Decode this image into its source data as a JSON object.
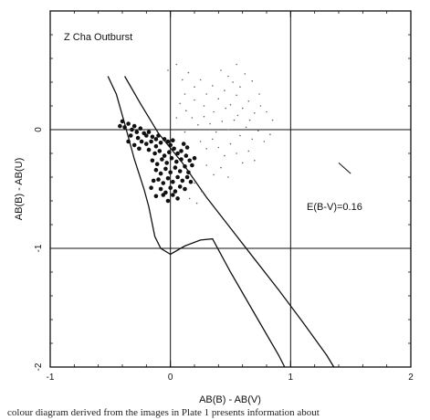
{
  "chart_data": {
    "type": "scatter",
    "title": "Z Cha Outburst",
    "xlabel": "AB(B) - AB(V)",
    "ylabel": "AB(B) - AB(U)",
    "xlim": [
      -1,
      2
    ],
    "ylim": [
      -2,
      1
    ],
    "y_axis_inverted": true,
    "xticks": [
      -1,
      0,
      1,
      2
    ],
    "xtick_labels": [
      "-1",
      "0",
      "1",
      "2"
    ],
    "yticks": [
      0,
      -1,
      -2
    ],
    "ytick_labels": [
      "0",
      "-1",
      "-2"
    ],
    "reference_lines": {
      "x": [
        0,
        1
      ],
      "y": [
        0,
        -1
      ]
    },
    "annotation": "E(B-V)=0.16",
    "reddening_vector": {
      "from": [
        1.4,
        -0.28
      ],
      "to": [
        1.5,
        -0.37
      ]
    },
    "curves": [
      {
        "points": [
          [
            -0.52,
            0.45
          ],
          [
            -0.45,
            0.3
          ],
          [
            -0.38,
            0.05
          ],
          [
            -0.3,
            -0.25
          ],
          [
            -0.22,
            -0.5
          ],
          [
            -0.18,
            -0.65
          ],
          [
            -0.13,
            -0.9
          ],
          [
            -0.08,
            -1.0
          ],
          [
            0,
            -1.05
          ],
          [
            0.12,
            -0.98
          ],
          [
            0.25,
            -0.93
          ],
          [
            0.35,
            -0.92
          ],
          [
            0.5,
            -1.2
          ],
          [
            0.7,
            -1.55
          ],
          [
            0.9,
            -1.9
          ],
          [
            0.95,
            -2.0
          ]
        ]
      },
      {
        "points": [
          [
            -0.38,
            0.45
          ],
          [
            -0.25,
            0.22
          ],
          [
            -0.1,
            -0.03
          ],
          [
            0.1,
            -0.28
          ],
          [
            0.3,
            -0.57
          ],
          [
            0.5,
            -0.83
          ],
          [
            0.7,
            -1.09
          ],
          [
            0.9,
            -1.35
          ],
          [
            1.1,
            -1.62
          ],
          [
            1.3,
            -1.9
          ],
          [
            1.36,
            -2.0
          ]
        ]
      }
    ],
    "series": [
      {
        "marker": "large-dot",
        "points": [
          [
            -0.4,
            0.07
          ],
          [
            -0.38,
            0.02
          ],
          [
            -0.35,
            0.05
          ],
          [
            -0.32,
            0.0
          ],
          [
            -0.3,
            0.03
          ],
          [
            -0.28,
            -0.02
          ],
          [
            -0.25,
            0.01
          ],
          [
            -0.22,
            -0.03
          ],
          [
            -0.2,
            -0.05
          ],
          [
            -0.18,
            -0.02
          ],
          [
            -0.15,
            -0.06
          ],
          [
            -0.12,
            -0.08
          ],
          [
            -0.1,
            -0.05
          ],
          [
            -0.33,
            -0.05
          ],
          [
            -0.27,
            -0.07
          ],
          [
            -0.24,
            -0.1
          ],
          [
            -0.2,
            -0.12
          ],
          [
            -0.16,
            -0.1
          ],
          [
            -0.12,
            -0.14
          ],
          [
            -0.08,
            -0.11
          ],
          [
            -0.05,
            -0.08
          ],
          [
            -0.02,
            -0.1
          ],
          [
            0.0,
            -0.13
          ],
          [
            0.02,
            -0.09
          ],
          [
            -0.18,
            -0.17
          ],
          [
            -0.13,
            -0.2
          ],
          [
            -0.09,
            -0.18
          ],
          [
            -0.05,
            -0.22
          ],
          [
            -0.01,
            -0.19
          ],
          [
            0.03,
            -0.16
          ],
          [
            0.06,
            -0.2
          ],
          [
            0.09,
            -0.18
          ],
          [
            -0.15,
            -0.26
          ],
          [
            -0.11,
            -0.29
          ],
          [
            -0.07,
            -0.25
          ],
          [
            -0.03,
            -0.28
          ],
          [
            0.01,
            -0.24
          ],
          [
            0.05,
            -0.27
          ],
          [
            0.09,
            -0.25
          ],
          [
            0.13,
            -0.22
          ],
          [
            0.16,
            -0.26
          ],
          [
            -0.12,
            -0.34
          ],
          [
            -0.08,
            -0.37
          ],
          [
            -0.04,
            -0.33
          ],
          [
            0.0,
            -0.36
          ],
          [
            0.04,
            -0.32
          ],
          [
            0.08,
            -0.35
          ],
          [
            0.12,
            -0.31
          ],
          [
            0.15,
            -0.36
          ],
          [
            -0.1,
            -0.42
          ],
          [
            -0.06,
            -0.45
          ],
          [
            -0.02,
            -0.41
          ],
          [
            0.02,
            -0.44
          ],
          [
            0.06,
            -0.4
          ],
          [
            0.1,
            -0.43
          ],
          [
            0.14,
            -0.4
          ],
          [
            -0.08,
            -0.5
          ],
          [
            -0.04,
            -0.53
          ],
          [
            0.0,
            -0.49
          ],
          [
            0.04,
            -0.52
          ],
          [
            0.08,
            -0.48
          ],
          [
            -0.12,
            -0.56
          ],
          [
            -0.06,
            -0.55
          ],
          [
            0.02,
            -0.55
          ],
          [
            0.18,
            -0.3
          ],
          [
            0.2,
            -0.24
          ],
          [
            -0.35,
            -0.1
          ],
          [
            -0.3,
            -0.13
          ],
          [
            -0.26,
            -0.16
          ],
          [
            -0.42,
            0.03
          ],
          [
            0.11,
            -0.12
          ],
          [
            0.14,
            -0.15
          ],
          [
            -0.14,
            -0.43
          ],
          [
            0.17,
            -0.44
          ],
          [
            -0.02,
            -0.6
          ],
          [
            0.06,
            -0.58
          ],
          [
            -0.16,
            -0.49
          ],
          [
            0.12,
            -0.5
          ]
        ]
      },
      {
        "marker": "small-dot",
        "points": [
          [
            -0.02,
            0.5
          ],
          [
            0.05,
            0.55
          ],
          [
            0.1,
            0.42
          ],
          [
            0.15,
            0.48
          ],
          [
            0.2,
            0.36
          ],
          [
            0.25,
            0.42
          ],
          [
            0.3,
            0.3
          ],
          [
            0.35,
            0.37
          ],
          [
            0.4,
            0.26
          ],
          [
            0.45,
            0.33
          ],
          [
            0.5,
            0.21
          ],
          [
            0.55,
            0.29
          ],
          [
            0.6,
            0.18
          ],
          [
            0.65,
            0.24
          ],
          [
            0.7,
            0.14
          ],
          [
            0.75,
            0.2
          ],
          [
            0.42,
            0.5
          ],
          [
            0.48,
            0.45
          ],
          [
            0.52,
            0.4
          ],
          [
            0.58,
            0.36
          ],
          [
            0.08,
            0.22
          ],
          [
            0.13,
            0.16
          ],
          [
            0.18,
            0.1
          ],
          [
            0.23,
            0.04
          ],
          [
            0.28,
            0.11
          ],
          [
            0.33,
            0.05
          ],
          [
            0.38,
            -0.02
          ],
          [
            0.43,
            0.07
          ],
          [
            0.48,
            0.0
          ],
          [
            0.53,
            0.08
          ],
          [
            0.58,
            -0.05
          ],
          [
            0.63,
            0.02
          ],
          [
            0.68,
            -0.08
          ],
          [
            0.73,
            -0.01
          ],
          [
            0.78,
            -0.1
          ],
          [
            0.83,
            -0.04
          ],
          [
            0.25,
            -0.1
          ],
          [
            0.3,
            -0.16
          ],
          [
            0.35,
            -0.08
          ],
          [
            0.4,
            -0.15
          ],
          [
            0.45,
            -0.22
          ],
          [
            0.5,
            -0.12
          ],
          [
            0.55,
            -0.2
          ],
          [
            0.6,
            -0.28
          ],
          [
            0.65,
            -0.18
          ],
          [
            0.7,
            -0.26
          ],
          [
            0.3,
            -0.3
          ],
          [
            0.36,
            -0.38
          ],
          [
            0.42,
            -0.32
          ],
          [
            0.48,
            -0.4
          ],
          [
            0.2,
            -0.45
          ],
          [
            0.26,
            -0.52
          ],
          [
            0.16,
            -0.58
          ],
          [
            0.22,
            -0.62
          ],
          [
            0.55,
            0.55
          ],
          [
            0.62,
            0.47
          ],
          [
            0.68,
            0.41
          ],
          [
            0.12,
            0.3
          ],
          [
            0.2,
            0.25
          ],
          [
            0.85,
            0.08
          ],
          [
            0.8,
            0.15
          ],
          [
            0.36,
            0.15
          ],
          [
            0.46,
            0.18
          ],
          [
            0.56,
            0.12
          ],
          [
            0.12,
            -0.02
          ],
          [
            0.66,
            0.08
          ],
          [
            0.05,
            0.1
          ],
          [
            0.28,
            0.2
          ],
          [
            0.74,
            0.3
          ]
        ]
      }
    ]
  },
  "caption": "colour diagram derived from the images in Plate 1 presents information about"
}
